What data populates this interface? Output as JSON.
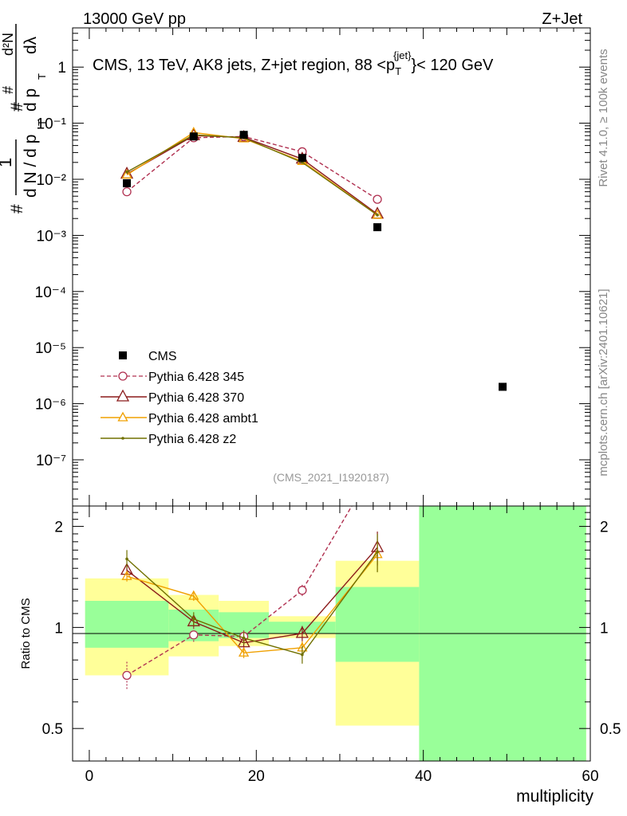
{
  "header": {
    "energy_label": "13000 GeV pp",
    "process_label": "Z+Jet"
  },
  "side_labels": {
    "rivet": "Rivet 4.1.0, ≥ 100k events",
    "mcplots": "mcplots.cern.ch [arXiv:2401.10621]"
  },
  "chart_data": [
    {
      "type": "scatter",
      "panel": "main",
      "title": "CMS, 13 TeV, AK8 jets, Z+jet region, 88 <p_T^{jet}< 120 GeV",
      "title_parts": {
        "prefix": "CMS, 13 TeV, AK8 jets, Z+jet region, 88 <p",
        "sub": "T",
        "sup": "{jet}",
        "suffix": "}< 120 GeV"
      },
      "analysis_id": "(CMS_2021_I1920187)",
      "ylabel": "1/(dN/dp_T) d²N/(dp_T dλ)",
      "ylabel_parts": {
        "hash": "#",
        "one": "1",
        "dN": "d N / d p",
        "T": "T",
        "d2N": "d²N",
        "dpt": "d p",
        "dlambda": "dλ"
      },
      "yscale": "log",
      "ylim": [
        1.5e-08,
        5
      ],
      "xlim": [
        -2,
        60
      ],
      "y_tick_labels": [
        "10⁻⁷",
        "10⁻⁶",
        "10⁻⁵",
        "10⁻⁴",
        "10⁻³",
        "10⁻²",
        "10⁻¹",
        "1"
      ],
      "y_tick_values": [
        1e-07,
        1e-06,
        1e-05,
        0.0001,
        0.001,
        0.01,
        0.1,
        1
      ],
      "legend_position": "bottom-left",
      "series": [
        {
          "name": "CMS",
          "marker": "square",
          "color": "#000000",
          "x": [
            4.5,
            12.5,
            18.5,
            25.5,
            34.5,
            49.5
          ],
          "y": [
            0.0085,
            0.058,
            0.062,
            0.024,
            0.0014,
            2e-06
          ]
        },
        {
          "name": "Pythia 6.428 345",
          "marker": "circle",
          "line": "dashed",
          "color": "#b03050",
          "x": [
            4.5,
            12.5,
            18.5,
            25.5,
            34.5
          ],
          "y": [
            0.006,
            0.055,
            0.058,
            0.031,
            0.0044
          ]
        },
        {
          "name": "Pythia 6.428 370",
          "marker": "triangle",
          "line": "solid",
          "color": "#8b1a1a",
          "x": [
            4.5,
            12.5,
            18.5,
            25.5,
            34.5
          ],
          "y": [
            0.0124,
            0.06,
            0.056,
            0.023,
            0.0024
          ]
        },
        {
          "name": "Pythia 6.428 ambt1",
          "marker": "triangle-small",
          "line": "solid",
          "color": "#f0a000",
          "x": [
            4.5,
            12.5,
            18.5,
            25.5,
            34.5
          ],
          "y": [
            0.012,
            0.068,
            0.053,
            0.021,
            0.0023
          ]
        },
        {
          "name": "Pythia 6.428 z2",
          "marker": "dot",
          "line": "solid",
          "color": "#707000",
          "x": [
            4.5,
            12.5,
            18.5,
            25.5,
            34.5
          ],
          "y": [
            0.0135,
            0.062,
            0.055,
            0.02,
            0.0023
          ]
        }
      ]
    },
    {
      "type": "line",
      "panel": "ratio",
      "ylabel": "Ratio to CMS",
      "xlabel": "multiplicity",
      "ylim": [
        0.4,
        2.3
      ],
      "xlim": [
        -2,
        60
      ],
      "y_tick_labels": [
        "0.5",
        "1",
        "2"
      ],
      "y_tick_values": [
        0.5,
        1,
        2
      ],
      "x_tick_labels": [
        "0",
        "20",
        "40",
        "60"
      ],
      "x_tick_values": [
        0,
        20,
        40,
        60
      ],
      "uncertainty_bands": [
        {
          "x_range": [
            -0.5,
            9.5
          ],
          "yellow": [
            0.72,
            1.4
          ],
          "green": [
            0.87,
            1.2
          ]
        },
        {
          "x_range": [
            9.5,
            15.5
          ],
          "yellow": [
            0.82,
            1.25
          ],
          "green": [
            0.91,
            1.13
          ]
        },
        {
          "x_range": [
            15.5,
            21.5
          ],
          "yellow": [
            0.88,
            1.2
          ],
          "green": [
            0.93,
            1.11
          ]
        },
        {
          "x_range": [
            21.5,
            29.5
          ],
          "yellow": [
            0.93,
            1.08
          ],
          "green": [
            0.96,
            1.04
          ]
        },
        {
          "x_range": [
            29.5,
            39.5
          ],
          "yellow": [
            0.51,
            1.58
          ],
          "green": [
            0.79,
            1.32
          ]
        },
        {
          "x_range": [
            39.5,
            59.5
          ],
          "yellow": [
            0.4,
            2.3
          ],
          "green": [
            0.4,
            2.3
          ]
        }
      ],
      "series": [
        {
          "name": "Pythia 6.428 345",
          "color": "#b03050",
          "x": [
            4.5,
            12.5,
            18.5,
            25.5,
            34.5
          ],
          "y": [
            0.72,
            0.95,
            0.94,
            1.29,
            3.1
          ],
          "err": [
            0.07,
            0.05,
            0.04,
            0.05,
            0
          ]
        },
        {
          "name": "Pythia 6.428 370",
          "color": "#8b1a1a",
          "x": [
            4.5,
            12.5,
            18.5,
            25.5,
            34.5
          ],
          "y": [
            1.48,
            1.04,
            0.9,
            0.96,
            1.73
          ],
          "err": [
            0.05,
            0.04,
            0.03,
            0.05,
            0.2
          ]
        },
        {
          "name": "Pythia 6.428 ambt1",
          "color": "#f0a000",
          "x": [
            4.5,
            12.5,
            18.5,
            25.5,
            34.5
          ],
          "y": [
            1.42,
            1.24,
            0.84,
            0.87,
            1.65
          ],
          "err": [
            0.05,
            0.04,
            0.03,
            0.04,
            0.18
          ]
        },
        {
          "name": "Pythia 6.428 z2",
          "color": "#707000",
          "x": [
            4.5,
            12.5,
            18.5,
            25.5,
            34.5
          ],
          "y": [
            1.6,
            1.06,
            0.93,
            0.83,
            1.68
          ],
          "err": [
            0.1,
            0.05,
            0.04,
            0.05,
            0.22
          ]
        }
      ]
    }
  ]
}
